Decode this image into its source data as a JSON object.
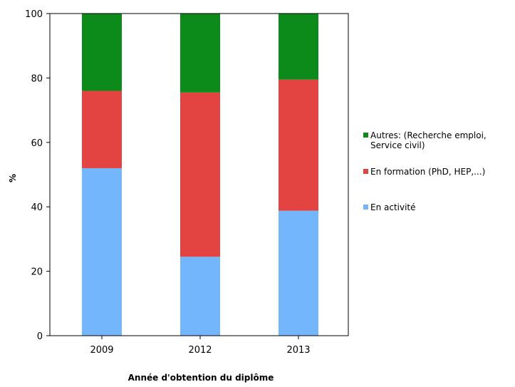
{
  "chart_data": {
    "type": "bar",
    "stacked": true,
    "categories": [
      "2009",
      "2012",
      "2013"
    ],
    "series": [
      {
        "name": "En activité",
        "color": "#73b6fb",
        "values": [
          52,
          24.5,
          38.8
        ]
      },
      {
        "name": "En formation (PhD, HEP,...)",
        "color": "#e34441",
        "values": [
          24,
          51,
          40.7
        ]
      },
      {
        "name": [
          "Autres: (Recherche emploi,",
          "Service civil)"
        ],
        "color": "#0c8a1a",
        "values": [
          24,
          24.5,
          20.5
        ]
      }
    ],
    "xlabel": "Année d'obtention du diplôme",
    "ylabel": "%",
    "ylim": [
      0,
      100
    ],
    "yticks": [
      "0",
      "20",
      "40",
      "60",
      "80",
      "100"
    ],
    "grid": false,
    "legend_position": "right"
  }
}
